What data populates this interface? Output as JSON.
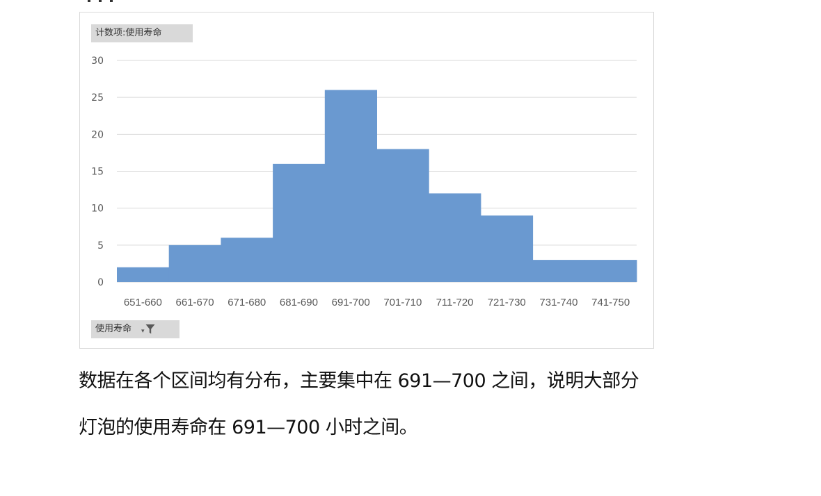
{
  "chart_data": {
    "type": "bar",
    "value_field_label": "计数项:使用寿命",
    "axis_field_label": "使用寿命",
    "categories": [
      "651-660",
      "661-670",
      "671-680",
      "681-690",
      "691-700",
      "701-710",
      "711-720",
      "721-730",
      "731-740",
      "741-750"
    ],
    "series": [
      {
        "values": [
          2,
          5,
          6,
          16,
          26,
          18,
          12,
          9,
          3,
          3
        ],
        "color": "#6a99d0"
      }
    ],
    "ylim": [
      0,
      30
    ],
    "yticks": [
      0,
      5,
      10,
      15,
      20,
      25,
      30
    ],
    "grid": true,
    "legend": "none",
    "bar_gap": 0,
    "gridline_color": "#d9d9d9",
    "tick_label_color": "#595959"
  },
  "caption": {
    "line1": "数据在各个区间均有分布，主要集中在 691—700 之间，说明大部分",
    "line2": "灯泡的使用寿命在 691—700 小时之间。"
  }
}
